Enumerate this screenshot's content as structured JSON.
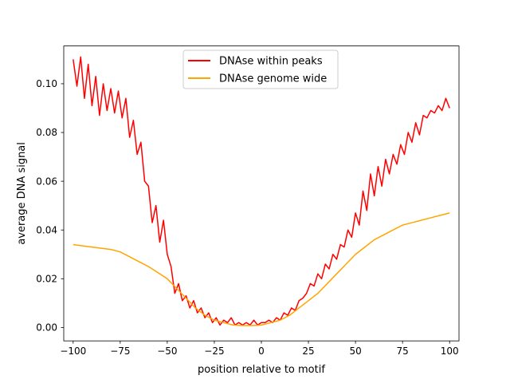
{
  "chart_data": {
    "type": "line",
    "title": "",
    "xlabel": "position relative to motif",
    "ylabel": "average DNA signal",
    "xlim": [
      -105,
      105
    ],
    "ylim": [
      -0.0055,
      0.1155
    ],
    "xticks": [
      -100,
      -75,
      -50,
      -25,
      0,
      25,
      50,
      75,
      100
    ],
    "xtick_labels": [
      "−100",
      "−75",
      "−50",
      "−25",
      "0",
      "25",
      "50",
      "75",
      "100"
    ],
    "yticks": [
      0.0,
      0.02,
      0.04,
      0.06,
      0.08,
      0.1
    ],
    "ytick_labels": [
      "0.00",
      "0.02",
      "0.04",
      "0.06",
      "0.08",
      "0.10"
    ],
    "grid": false,
    "legend": {
      "position": "top-center"
    },
    "series": [
      {
        "name": "DNAse within peaks",
        "color": "#ff0000",
        "x": [
          -100,
          -98,
          -96,
          -94,
          -92,
          -90,
          -88,
          -86,
          -84,
          -82,
          -80,
          -78,
          -76,
          -74,
          -72,
          -70,
          -68,
          -66,
          -64,
          -62,
          -60,
          -58,
          -56,
          -54,
          -52,
          -50,
          -48,
          -46,
          -44,
          -42,
          -40,
          -38,
          -36,
          -34,
          -32,
          -30,
          -28,
          -26,
          -24,
          -22,
          -20,
          -18,
          -16,
          -14,
          -12,
          -10,
          -8,
          -6,
          -4,
          -2,
          0,
          2,
          4,
          6,
          8,
          10,
          12,
          14,
          16,
          18,
          20,
          22,
          24,
          26,
          28,
          30,
          32,
          34,
          36,
          38,
          40,
          42,
          44,
          46,
          48,
          50,
          52,
          54,
          56,
          58,
          60,
          62,
          64,
          66,
          68,
          70,
          72,
          74,
          76,
          78,
          80,
          82,
          84,
          86,
          88,
          90,
          92,
          94,
          96,
          98,
          100
        ],
        "y": [
          0.11,
          0.099,
          0.111,
          0.094,
          0.108,
          0.091,
          0.103,
          0.087,
          0.1,
          0.089,
          0.098,
          0.088,
          0.097,
          0.086,
          0.094,
          0.078,
          0.085,
          0.071,
          0.076,
          0.06,
          0.058,
          0.043,
          0.05,
          0.035,
          0.044,
          0.03,
          0.025,
          0.014,
          0.018,
          0.011,
          0.013,
          0.008,
          0.011,
          0.006,
          0.008,
          0.004,
          0.006,
          0.002,
          0.004,
          0.001,
          0.003,
          0.002,
          0.004,
          0.001,
          0.002,
          0.001,
          0.002,
          0.001,
          0.003,
          0.001,
          0.002,
          0.002,
          0.003,
          0.002,
          0.004,
          0.003,
          0.006,
          0.005,
          0.008,
          0.007,
          0.011,
          0.012,
          0.014,
          0.018,
          0.017,
          0.022,
          0.02,
          0.026,
          0.024,
          0.03,
          0.028,
          0.034,
          0.033,
          0.04,
          0.037,
          0.047,
          0.042,
          0.056,
          0.048,
          0.063,
          0.054,
          0.066,
          0.058,
          0.069,
          0.063,
          0.071,
          0.067,
          0.075,
          0.071,
          0.08,
          0.076,
          0.084,
          0.079,
          0.087,
          0.086,
          0.089,
          0.088,
          0.091,
          0.089,
          0.094,
          0.09
        ]
      },
      {
        "name": "DNAse genome wide",
        "color": "#ffa500",
        "x": [
          -100,
          -95,
          -90,
          -85,
          -80,
          -75,
          -70,
          -65,
          -60,
          -55,
          -50,
          -45,
          -40,
          -35,
          -30,
          -25,
          -20,
          -15,
          -10,
          -5,
          0,
          5,
          10,
          15,
          20,
          25,
          30,
          35,
          40,
          45,
          50,
          55,
          60,
          65,
          70,
          75,
          80,
          85,
          90,
          95,
          100
        ],
        "y": [
          0.034,
          0.0335,
          0.033,
          0.0325,
          0.032,
          0.031,
          0.029,
          0.027,
          0.025,
          0.0225,
          0.02,
          0.016,
          0.012,
          0.008,
          0.005,
          0.003,
          0.002,
          0.001,
          0.0008,
          0.0008,
          0.001,
          0.002,
          0.003,
          0.005,
          0.008,
          0.011,
          0.014,
          0.018,
          0.022,
          0.026,
          0.03,
          0.033,
          0.036,
          0.038,
          0.04,
          0.042,
          0.043,
          0.044,
          0.045,
          0.046,
          0.047
        ]
      }
    ]
  }
}
